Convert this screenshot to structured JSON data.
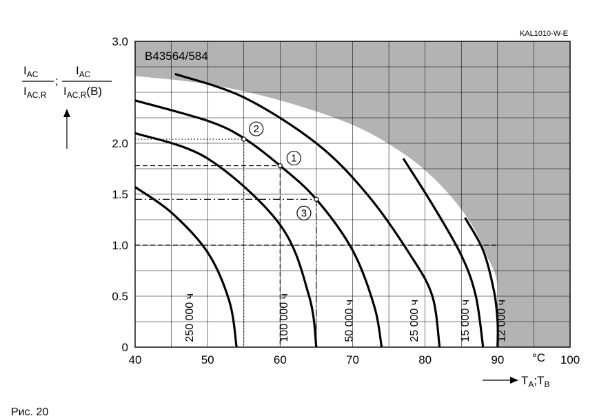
{
  "chart_data": {
    "type": "line",
    "code": "KAL1010-W-E",
    "model": "B43564/584",
    "ylabel": {
      "num1": "AC",
      "den1": "AC,R",
      "num2": "AC",
      "den2": "AC,R",
      "den2_suffix": "(B)",
      "letter": "I",
      "separator": ";"
    },
    "xlabel": {
      "a": "A",
      "b": "B",
      "letter": "T",
      "separator": ";"
    },
    "x_unit": "°C",
    "xlim": [
      40,
      100
    ],
    "ylim": [
      0,
      3.0
    ],
    "x_ticks": [
      "40",
      "50",
      "60",
      "70",
      "80",
      "90",
      "100"
    ],
    "y_ticks": [
      "0",
      "0.5",
      "1.0",
      "1.5",
      "2.0",
      "3.0"
    ],
    "grid": true,
    "series": [
      {
        "name": "250 000 ч",
        "points": [
          [
            40,
            1.57
          ],
          [
            45,
            1.32
          ],
          [
            50,
            0.93
          ],
          [
            53,
            0.45
          ],
          [
            54,
            0
          ]
        ]
      },
      {
        "name": "100 000 ч",
        "points": [
          [
            40,
            2.1
          ],
          [
            50,
            1.85
          ],
          [
            60,
            1.2
          ],
          [
            64,
            0.5
          ],
          [
            65,
            0
          ]
        ]
      },
      {
        "name": "50 000 ч",
        "points": [
          [
            40,
            2.42
          ],
          [
            50,
            2.22
          ],
          [
            55,
            2.05
          ],
          [
            60,
            1.78
          ],
          [
            65,
            1.45
          ],
          [
            70,
            0.95
          ],
          [
            73,
            0.4
          ],
          [
            74,
            0
          ]
        ]
      },
      {
        "name": "25 000 ч",
        "points": [
          [
            45.5,
            2.68
          ],
          [
            55,
            2.45
          ],
          [
            65,
            2.0
          ],
          [
            72,
            1.5
          ],
          [
            78,
            0.9
          ],
          [
            81,
            0.5
          ],
          [
            82,
            0
          ]
        ]
      },
      {
        "name": "15 000 ч",
        "points": [
          [
            77,
            1.85
          ],
          [
            81,
            1.4
          ],
          [
            85,
            0.9
          ],
          [
            87,
            0.5
          ],
          [
            88,
            0
          ]
        ]
      },
      {
        "name": "12 000 ч",
        "points": [
          [
            85.5,
            1.27
          ],
          [
            88,
            0.95
          ],
          [
            89.5,
            0.55
          ],
          [
            90,
            0.25
          ],
          [
            90,
            0
          ]
        ]
      }
    ],
    "shaded_region": {
      "boundary": [
        [
          40,
          2.66
        ],
        [
          50,
          2.58
        ],
        [
          60,
          2.42
        ],
        [
          70,
          2.18
        ],
        [
          77,
          1.9
        ],
        [
          82,
          1.6
        ],
        [
          86,
          1.25
        ],
        [
          88.5,
          0.9
        ],
        [
          90,
          0.6
        ],
        [
          90,
          0
        ]
      ]
    },
    "operating_points": [
      {
        "label": "1",
        "x": 60,
        "y": 1.78,
        "style": "dashed"
      },
      {
        "label": "2",
        "x": 55,
        "y": 2.04,
        "style": "dotted"
      },
      {
        "label": "3",
        "x": 65,
        "y": 1.45,
        "style": "dashdot"
      }
    ],
    "reference_line": {
      "y": 1.0,
      "x_end": 90,
      "style": "dashed"
    }
  },
  "caption": "Рис. 20"
}
